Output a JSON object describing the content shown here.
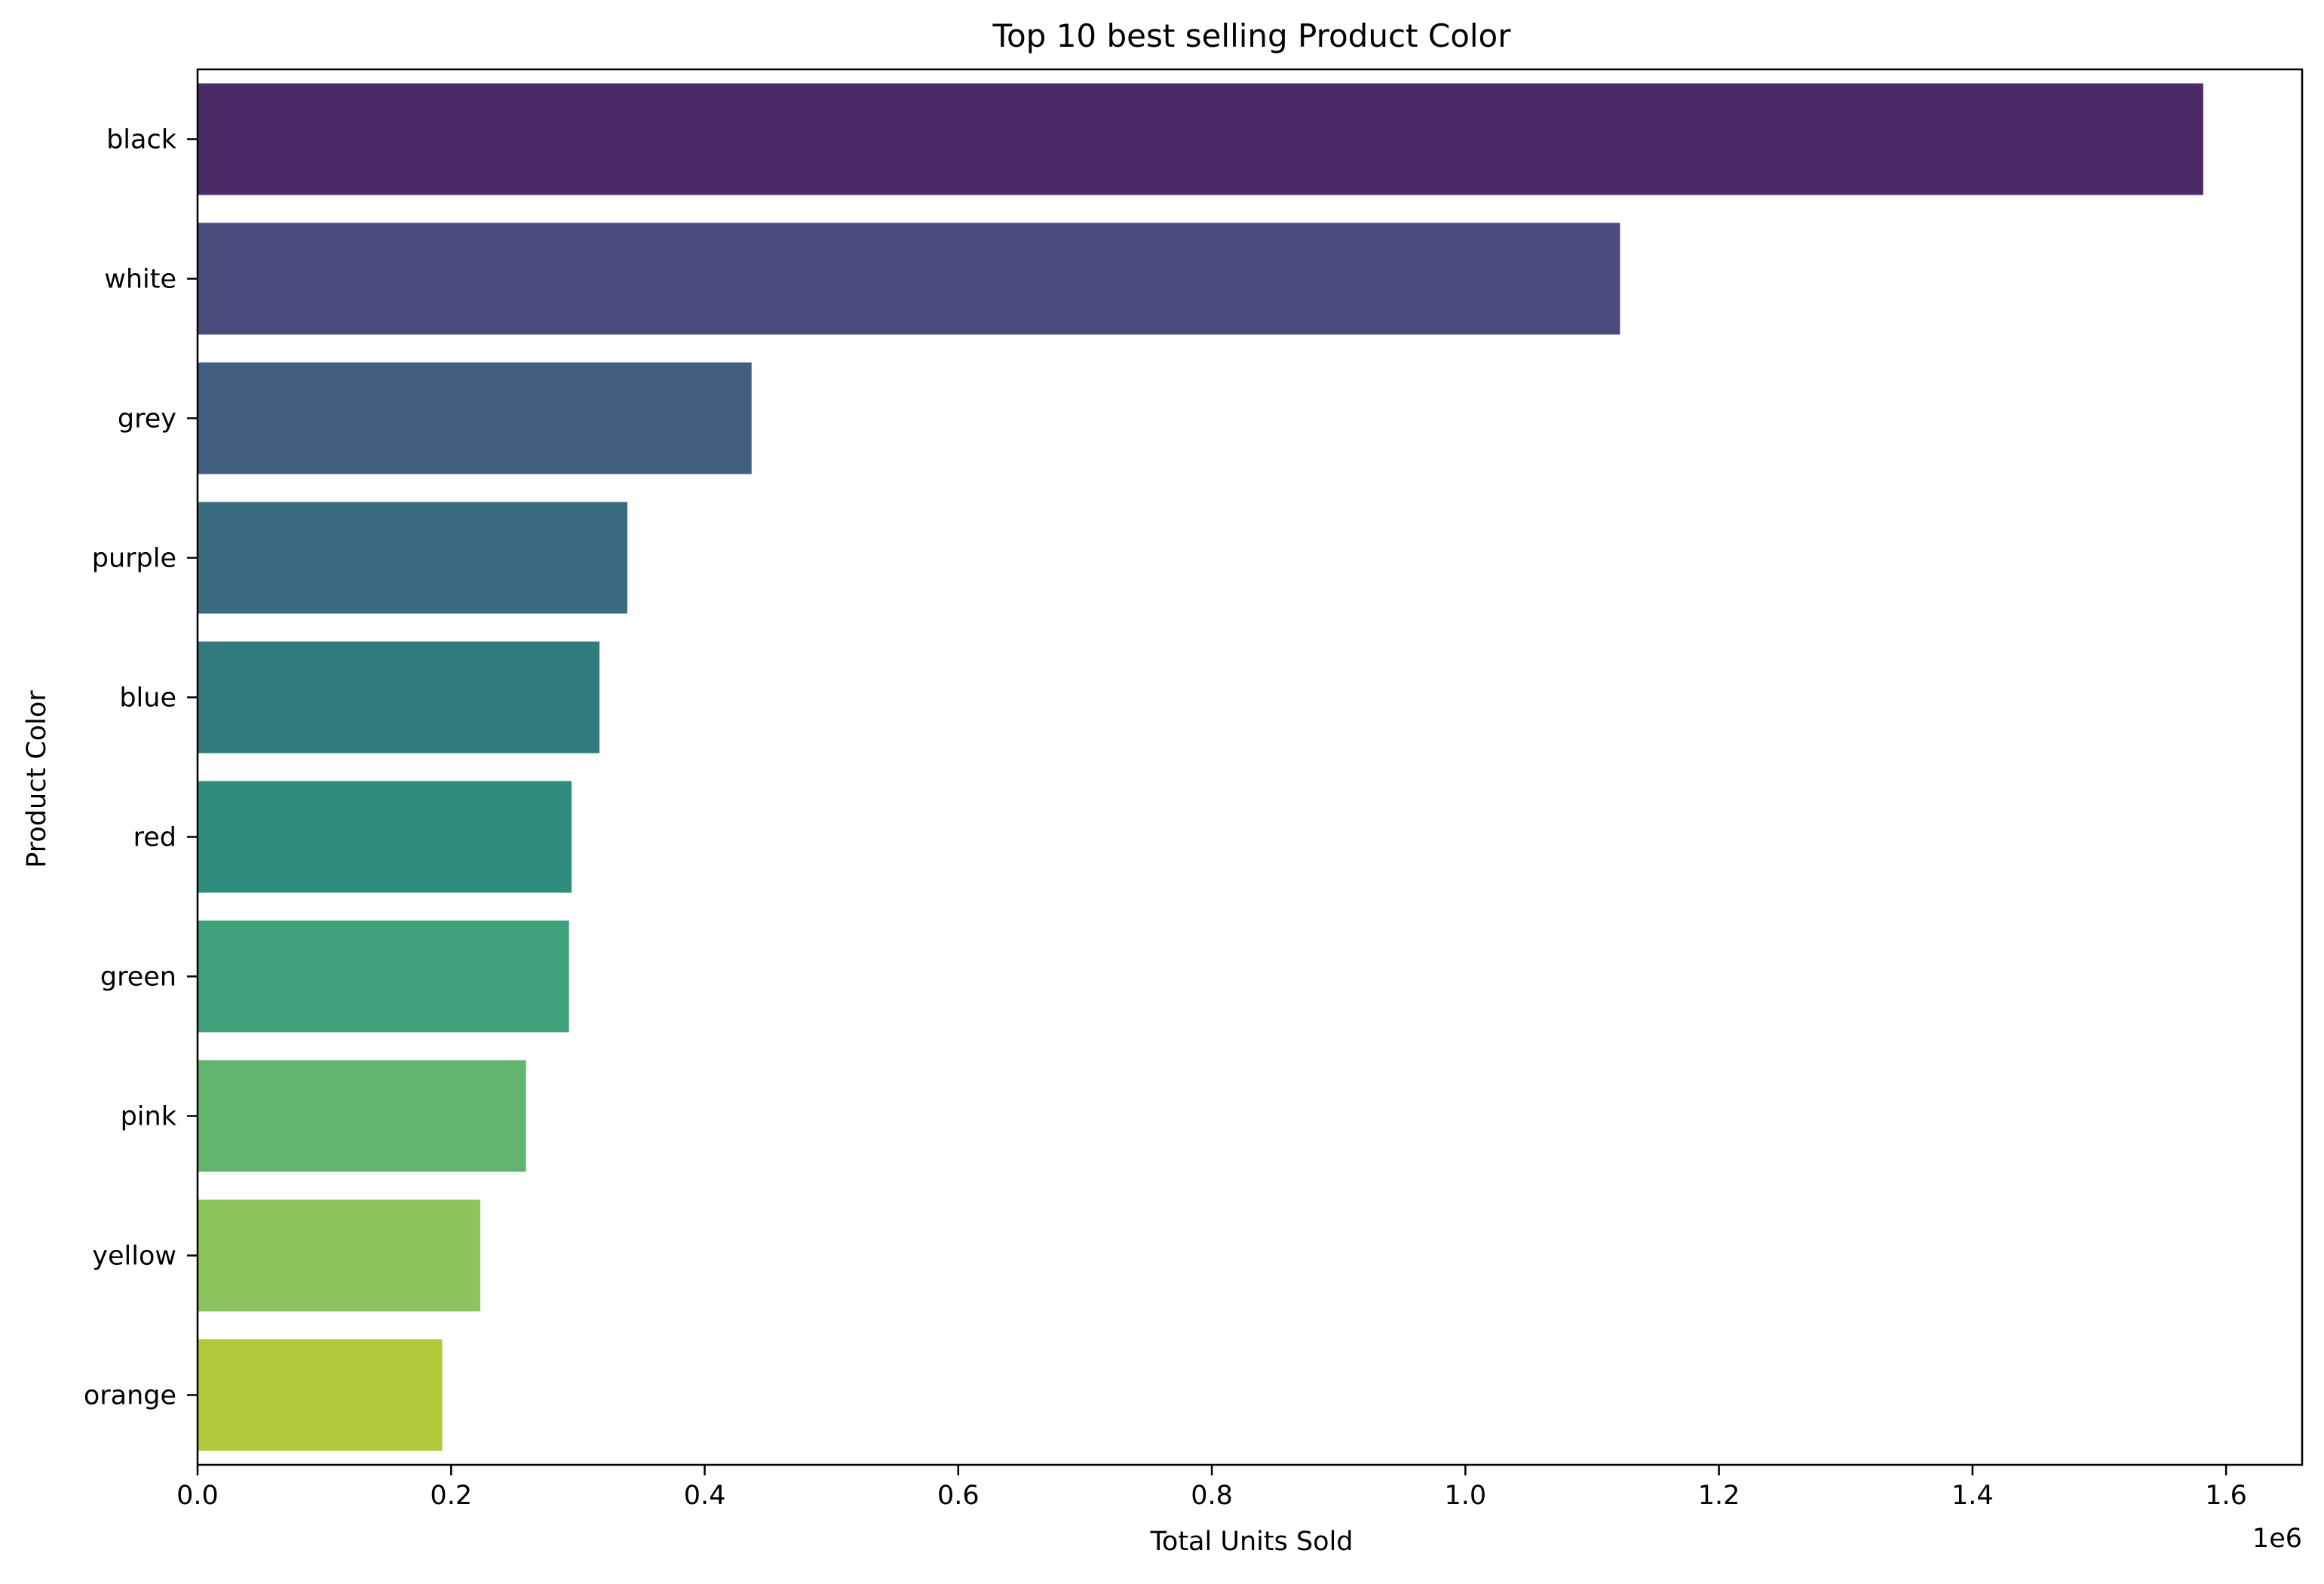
{
  "chart_data": {
    "type": "bar",
    "orientation": "horizontal",
    "title": "Top 10 best selling Product Color",
    "xlabel": "Total Units Sold",
    "ylabel": "Product Color",
    "x_offset_text": "1e6",
    "x_scale_factor": 1000000,
    "xlim": [
      0,
      1660000
    ],
    "x_ticks": [
      0,
      200000,
      400000,
      600000,
      800000,
      1000000,
      1200000,
      1400000,
      1600000
    ],
    "x_tick_labels": [
      "0.0",
      "0.2",
      "0.4",
      "0.6",
      "0.8",
      "1.0",
      "1.2",
      "1.4",
      "1.6"
    ],
    "grid": false,
    "legend": "none",
    "categories": [
      "black",
      "white",
      "grey",
      "purple",
      "blue",
      "red",
      "green",
      "pink",
      "yellow",
      "orange"
    ],
    "values": [
      1582000,
      1122000,
      437000,
      339000,
      317000,
      295000,
      293000,
      259000,
      223000,
      193000
    ],
    "colors": [
      "#4b2b67",
      "#4a4a7d",
      "#425e81",
      "#3a6c80",
      "#327b7f",
      "#2f8b7c",
      "#3ea17a",
      "#62b46f",
      "#8bc35d",
      "#b1c83b"
    ]
  }
}
